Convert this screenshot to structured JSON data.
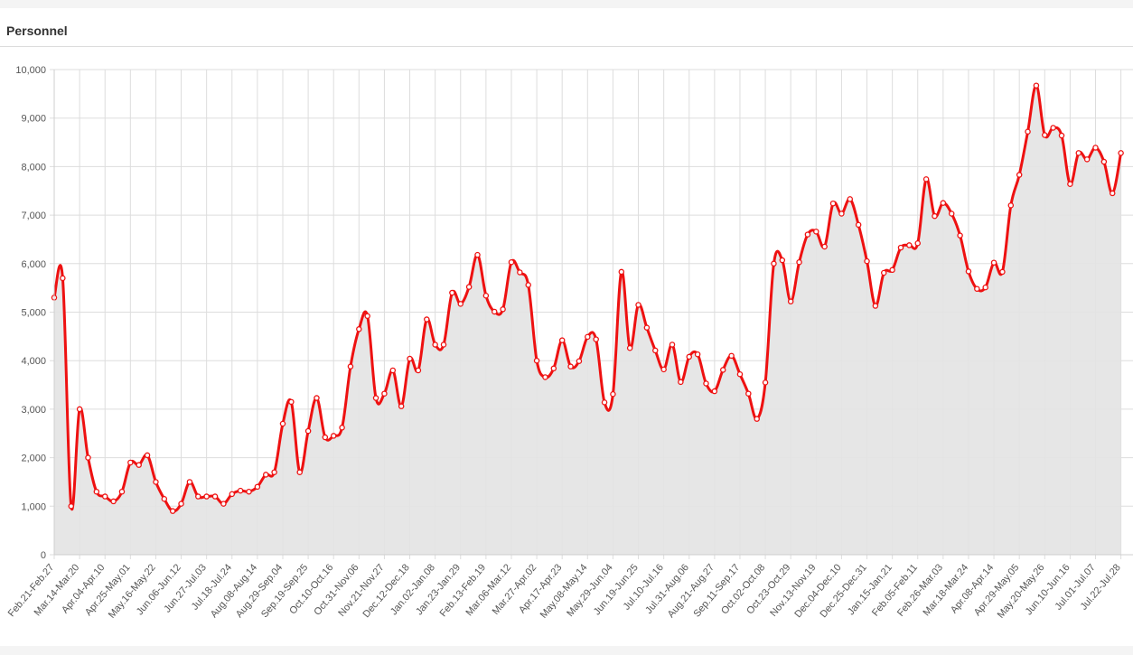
{
  "panel": {
    "title": "Personnel"
  },
  "chart_data": {
    "type": "area",
    "title": "",
    "xlabel": "",
    "ylabel": "",
    "ylim": [
      0,
      10000
    ],
    "yticks": [
      0,
      1000,
      2000,
      3000,
      4000,
      5000,
      6000,
      7000,
      8000,
      9000,
      10000
    ],
    "ytick_labels": [
      "0",
      "1,000",
      "2,000",
      "3,000",
      "4,000",
      "5,000",
      "6,000",
      "7,000",
      "8,000",
      "9,000",
      "10,000"
    ],
    "grid": true,
    "colors": {
      "line": "#ee1111",
      "fill": "#e3e3e3",
      "grid": "#dddddd"
    },
    "x_labels": [
      "Feb.21-Feb.27",
      "Mar.14-Mar.20",
      "Apr.04-Apr.10",
      "Apr.25-May.01",
      "May.16-May.22",
      "Jun.06-Jun.12",
      "Jun.27-Jul.03",
      "Jul.18-Jul.24",
      "Aug.08-Aug.14",
      "Aug.29-Sep.04",
      "Sep.19-Sep.25",
      "Oct.10-Oct.16",
      "Oct.31-Nov.06",
      "Nov.21-Nov.27",
      "Dec.12-Dec.18",
      "Jan.02-Jan.08",
      "Jan.23-Jan.29",
      "Feb.13-Feb.19",
      "Mar.06-Mar.12",
      "Mar.27-Apr.02",
      "Apr.17-Apr.23",
      "May.08-May.14",
      "May.29-Jun.04",
      "Jun.19-Jun.25",
      "Jul.10-Jul.16",
      "Jul.31-Aug.06",
      "Aug.21-Aug.27",
      "Sep.11-Sep.17",
      "Oct.02-Oct.08",
      "Oct.23-Oct.29",
      "Nov.13-Nov.19",
      "Dec.04-Dec.10",
      "Dec.25-Dec.31",
      "Jan.15-Jan.21",
      "Feb.05-Feb.11",
      "Feb.26-Mar.03",
      "Mar.18-Mar.24",
      "Apr.08-Apr.14",
      "Apr.29-May.05",
      "May.20-May.26",
      "Jun.10-Jun.16",
      "Jul.01-Jul.07",
      "Jul.22-Jul.28"
    ],
    "series": [
      {
        "values": [
          5300,
          5700,
          1000,
          3000,
          2000,
          1300,
          1200,
          1100,
          1300,
          1900,
          1850,
          2050,
          1500,
          1150,
          900,
          1050,
          1500,
          1200,
          1200,
          1200,
          1050,
          1250,
          1320,
          1300,
          1400,
          1650,
          1700,
          2700,
          3150,
          1700,
          2550,
          3230,
          2420,
          2450,
          2620,
          3880,
          4650,
          4920,
          3230,
          3320,
          3800,
          3060,
          4040,
          3800,
          4850,
          4330,
          4330,
          5400,
          5170,
          5520,
          6180,
          5340,
          5010,
          5060,
          6030,
          5820,
          5560,
          4000,
          3660,
          3840,
          4420,
          3880,
          3990,
          4490,
          4440,
          3140,
          3310,
          5830,
          4260,
          5150,
          4680,
          4210,
          3820,
          4330,
          3560,
          4080,
          4130,
          3530,
          3370,
          3810,
          4100,
          3720,
          3320,
          2800,
          3550,
          6000,
          6070,
          5220,
          6030,
          6600,
          6660,
          6350,
          7240,
          7030,
          7330,
          6800,
          6050,
          5130,
          5810,
          5870,
          6330,
          6380,
          6420,
          7740,
          6980,
          7250,
          7030,
          6580,
          5840,
          5480,
          5510,
          6020,
          5830,
          7200,
          7830,
          8720,
          9670,
          8650,
          8800,
          8640,
          7640,
          8280,
          8150,
          8390,
          8100,
          7450,
          8280
        ]
      }
    ]
  }
}
